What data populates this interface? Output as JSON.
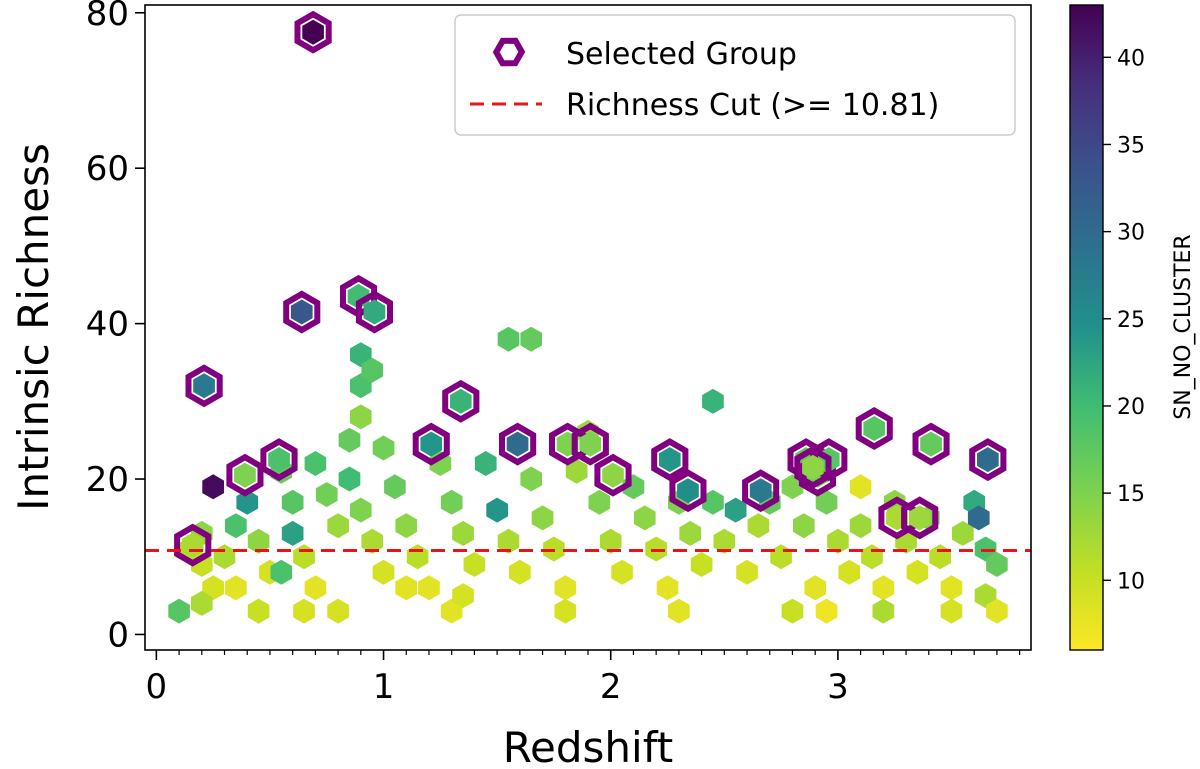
{
  "chart_data": {
    "type": "hexbin",
    "xlabel": "Redshift",
    "ylabel": "Intrinsic Richness",
    "xlim": [
      -0.05,
      3.85
    ],
    "ylim": [
      -2,
      81
    ],
    "x_ticks": [
      "0",
      "1",
      "2",
      "3"
    ],
    "y_ticks": [
      "0",
      "20",
      "40",
      "60",
      "80"
    ],
    "x_tick_values": [
      0,
      1,
      2,
      3
    ],
    "y_tick_values": [
      0,
      20,
      40,
      60,
      80
    ],
    "colorbar": {
      "label": "SN_NO_CLUSTER",
      "range": [
        6,
        43
      ],
      "ticks": [
        "10",
        "15",
        "20",
        "25",
        "30",
        "35",
        "40"
      ],
      "tick_values": [
        10,
        15,
        20,
        25,
        30,
        35,
        40
      ],
      "colormap": "viridis_r"
    },
    "legend": {
      "position": "top-right",
      "entries": [
        {
          "label": "Selected Group",
          "marker": "hexagon-outline",
          "color": "#800080"
        },
        {
          "label": "Richness Cut (>= 10.81)",
          "marker": "dashed-line",
          "color": "#e8141a"
        }
      ]
    },
    "richness_cut": 10.81,
    "hexbins": [
      {
        "x": 0.15,
        "y": 11,
        "c": 11
      },
      {
        "x": 0.2,
        "y": 9,
        "c": 10
      },
      {
        "x": 0.25,
        "y": 6,
        "c": 9
      },
      {
        "x": 0.2,
        "y": 13,
        "c": 14
      },
      {
        "x": 0.25,
        "y": 19,
        "c": 42
      },
      {
        "x": 0.3,
        "y": 10,
        "c": 12
      },
      {
        "x": 0.35,
        "y": 6,
        "c": 8
      },
      {
        "x": 0.1,
        "y": 3,
        "c": 18
      },
      {
        "x": 0.2,
        "y": 4,
        "c": 12
      },
      {
        "x": 0.35,
        "y": 14,
        "c": 19
      },
      {
        "x": 0.4,
        "y": 17,
        "c": 24
      },
      {
        "x": 0.45,
        "y": 12,
        "c": 14
      },
      {
        "x": 0.5,
        "y": 8,
        "c": 9
      },
      {
        "x": 0.55,
        "y": 21,
        "c": 17
      },
      {
        "x": 0.6,
        "y": 17,
        "c": 18
      },
      {
        "x": 0.6,
        "y": 13,
        "c": 23
      },
      {
        "x": 0.65,
        "y": 10,
        "c": 11
      },
      {
        "x": 0.7,
        "y": 6,
        "c": 8
      },
      {
        "x": 0.7,
        "y": 22,
        "c": 19
      },
      {
        "x": 0.75,
        "y": 18,
        "c": 16
      },
      {
        "x": 0.8,
        "y": 14,
        "c": 13
      },
      {
        "x": 0.85,
        "y": 25,
        "c": 17
      },
      {
        "x": 0.85,
        "y": 20,
        "c": 20
      },
      {
        "x": 0.9,
        "y": 36,
        "c": 21
      },
      {
        "x": 0.9,
        "y": 32,
        "c": 19
      },
      {
        "x": 0.9,
        "y": 28,
        "c": 14
      },
      {
        "x": 0.95,
        "y": 34,
        "c": 18
      },
      {
        "x": 0.9,
        "y": 16,
        "c": 15
      },
      {
        "x": 0.95,
        "y": 12,
        "c": 12
      },
      {
        "x": 1.0,
        "y": 8,
        "c": 9
      },
      {
        "x": 1.0,
        "y": 24,
        "c": 16
      },
      {
        "x": 1.05,
        "y": 19,
        "c": 17
      },
      {
        "x": 1.1,
        "y": 14,
        "c": 14
      },
      {
        "x": 1.15,
        "y": 10,
        "c": 11
      },
      {
        "x": 1.2,
        "y": 6,
        "c": 8
      },
      {
        "x": 1.25,
        "y": 22,
        "c": 15
      },
      {
        "x": 1.3,
        "y": 17,
        "c": 16
      },
      {
        "x": 1.35,
        "y": 13,
        "c": 13
      },
      {
        "x": 1.4,
        "y": 9,
        "c": 10
      },
      {
        "x": 1.45,
        "y": 22,
        "c": 21
      },
      {
        "x": 1.5,
        "y": 16,
        "c": 24
      },
      {
        "x": 1.55,
        "y": 38,
        "c": 18
      },
      {
        "x": 1.65,
        "y": 38,
        "c": 17
      },
      {
        "x": 1.55,
        "y": 12,
        "c": 12
      },
      {
        "x": 1.6,
        "y": 8,
        "c": 9
      },
      {
        "x": 1.65,
        "y": 20,
        "c": 15
      },
      {
        "x": 1.7,
        "y": 15,
        "c": 14
      },
      {
        "x": 1.75,
        "y": 11,
        "c": 11
      },
      {
        "x": 1.8,
        "y": 6,
        "c": 8
      },
      {
        "x": 1.85,
        "y": 21,
        "c": 13
      },
      {
        "x": 1.9,
        "y": 26,
        "c": 13
      },
      {
        "x": 1.95,
        "y": 17,
        "c": 15
      },
      {
        "x": 2.0,
        "y": 12,
        "c": 12
      },
      {
        "x": 2.05,
        "y": 8,
        "c": 9
      },
      {
        "x": 2.1,
        "y": 19,
        "c": 17
      },
      {
        "x": 2.15,
        "y": 15,
        "c": 14
      },
      {
        "x": 2.2,
        "y": 11,
        "c": 11
      },
      {
        "x": 2.25,
        "y": 6,
        "c": 8
      },
      {
        "x": 2.3,
        "y": 17,
        "c": 15
      },
      {
        "x": 2.35,
        "y": 13,
        "c": 13
      },
      {
        "x": 2.4,
        "y": 9,
        "c": 10
      },
      {
        "x": 2.45,
        "y": 30,
        "c": 21
      },
      {
        "x": 2.45,
        "y": 17,
        "c": 18
      },
      {
        "x": 2.5,
        "y": 12,
        "c": 12
      },
      {
        "x": 2.55,
        "y": 16,
        "c": 23
      },
      {
        "x": 2.6,
        "y": 8,
        "c": 9
      },
      {
        "x": 2.65,
        "y": 14,
        "c": 12
      },
      {
        "x": 2.7,
        "y": 17,
        "c": 17
      },
      {
        "x": 2.75,
        "y": 10,
        "c": 11
      },
      {
        "x": 2.8,
        "y": 19,
        "c": 15
      },
      {
        "x": 2.85,
        "y": 14,
        "c": 14
      },
      {
        "x": 2.9,
        "y": 6,
        "c": 8
      },
      {
        "x": 2.95,
        "y": 17,
        "c": 16
      },
      {
        "x": 3.0,
        "y": 12,
        "c": 12
      },
      {
        "x": 3.05,
        "y": 8,
        "c": 9
      },
      {
        "x": 3.1,
        "y": 19,
        "c": 8
      },
      {
        "x": 3.1,
        "y": 14,
        "c": 13
      },
      {
        "x": 3.15,
        "y": 10,
        "c": 11
      },
      {
        "x": 3.2,
        "y": 6,
        "c": 8
      },
      {
        "x": 3.25,
        "y": 17,
        "c": 14
      },
      {
        "x": 3.3,
        "y": 12,
        "c": 12
      },
      {
        "x": 3.35,
        "y": 8,
        "c": 9
      },
      {
        "x": 3.4,
        "y": 15,
        "c": 15
      },
      {
        "x": 3.45,
        "y": 10,
        "c": 11
      },
      {
        "x": 3.5,
        "y": 6,
        "c": 8
      },
      {
        "x": 3.55,
        "y": 13,
        "c": 13
      },
      {
        "x": 3.6,
        "y": 17,
        "c": 22
      },
      {
        "x": 3.62,
        "y": 15,
        "c": 30
      },
      {
        "x": 3.65,
        "y": 11,
        "c": 19
      },
      {
        "x": 3.7,
        "y": 9,
        "c": 17
      },
      {
        "x": 3.65,
        "y": 5,
        "c": 12
      },
      {
        "x": 3.7,
        "y": 3,
        "c": 8
      },
      {
        "x": 0.45,
        "y": 3,
        "c": 10
      },
      {
        "x": 0.8,
        "y": 3,
        "c": 9
      },
      {
        "x": 1.3,
        "y": 3,
        "c": 8
      },
      {
        "x": 1.8,
        "y": 3,
        "c": 9
      },
      {
        "x": 2.3,
        "y": 3,
        "c": 8
      },
      {
        "x": 2.8,
        "y": 3,
        "c": 10
      },
      {
        "x": 3.2,
        "y": 3,
        "c": 12
      },
      {
        "x": 3.5,
        "y": 3,
        "c": 9
      },
      {
        "x": 0.55,
        "y": 8,
        "c": 19
      },
      {
        "x": 1.1,
        "y": 6,
        "c": 8
      },
      {
        "x": 1.35,
        "y": 5,
        "c": 9
      },
      {
        "x": 2.95,
        "y": 3,
        "c": 7
      },
      {
        "x": 0.65,
        "y": 3,
        "c": 9
      }
    ],
    "selected_groups": [
      {
        "x": 0.69,
        "y": 77.5,
        "c": 43
      },
      {
        "x": 0.64,
        "y": 41.5,
        "c": 33
      },
      {
        "x": 0.89,
        "y": 43.5,
        "c": 20
      },
      {
        "x": 0.96,
        "y": 41.5,
        "c": 22
      },
      {
        "x": 0.21,
        "y": 32,
        "c": 28
      },
      {
        "x": 1.34,
        "y": 30,
        "c": 21
      },
      {
        "x": 0.39,
        "y": 20.5,
        "c": 15
      },
      {
        "x": 0.54,
        "y": 22.5,
        "c": 19
      },
      {
        "x": 0.16,
        "y": 11.5,
        "c": 12
      },
      {
        "x": 1.21,
        "y": 24.5,
        "c": 24
      },
      {
        "x": 1.59,
        "y": 24.5,
        "c": 30
      },
      {
        "x": 1.81,
        "y": 24.5,
        "c": 15
      },
      {
        "x": 1.91,
        "y": 24.5,
        "c": 15
      },
      {
        "x": 2.01,
        "y": 20.5,
        "c": 14
      },
      {
        "x": 2.26,
        "y": 22.5,
        "c": 24
      },
      {
        "x": 2.34,
        "y": 18.5,
        "c": 25
      },
      {
        "x": 2.66,
        "y": 18.5,
        "c": 28
      },
      {
        "x": 2.86,
        "y": 22.5,
        "c": 17
      },
      {
        "x": 2.91,
        "y": 20.5,
        "c": 16
      },
      {
        "x": 2.96,
        "y": 22.5,
        "c": 18
      },
      {
        "x": 2.89,
        "y": 21.5,
        "c": 14
      },
      {
        "x": 3.16,
        "y": 26.5,
        "c": 18
      },
      {
        "x": 3.26,
        "y": 15,
        "c": 12
      },
      {
        "x": 3.36,
        "y": 15,
        "c": 13
      },
      {
        "x": 3.41,
        "y": 24.5,
        "c": 17
      },
      {
        "x": 3.66,
        "y": 22.5,
        "c": 30
      }
    ]
  }
}
